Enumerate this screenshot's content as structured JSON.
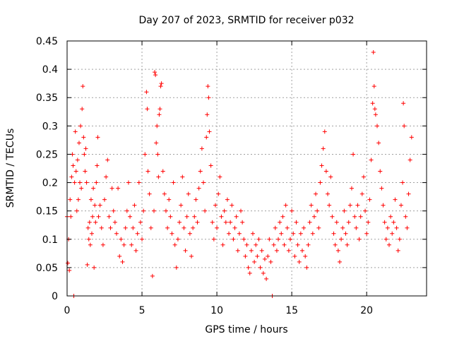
{
  "chart_data": {
    "type": "scatter",
    "title": "Day 207 of 2023, SRMTID for receiver p032",
    "xlabel": "GPS time / hours",
    "ylabel": "SRMTID / TECUs",
    "xlim": [
      0,
      24
    ],
    "ylim": [
      0,
      0.45
    ],
    "xticks": [
      0,
      5,
      10,
      15,
      20
    ],
    "yticks": [
      0,
      0.05,
      0.1,
      0.15,
      0.2,
      0.25,
      0.3,
      0.35,
      0.4,
      0.45
    ],
    "xtick_labels": [
      "0",
      "5",
      "10",
      "15",
      "20"
    ],
    "ytick_labels": [
      "0",
      "0.05",
      "0.1",
      "0.15",
      "0.2",
      "0.25",
      "0.3",
      "0.35",
      "0.4",
      "0.45"
    ],
    "grid": true,
    "marker": "+",
    "color": "#ff0000",
    "series": [
      {
        "name": "SRMTID",
        "points": [
          [
            0.0,
            0.14
          ],
          [
            0.05,
            0.058
          ],
          [
            0.1,
            0.1
          ],
          [
            0.15,
            0.045
          ],
          [
            0.2,
            0.17
          ],
          [
            0.25,
            0.14
          ],
          [
            0.3,
            0.21
          ],
          [
            0.35,
            0.25
          ],
          [
            0.4,
            0.23
          ],
          [
            0.45,
            0.0
          ],
          [
            0.5,
            0.2
          ],
          [
            0.55,
            0.29
          ],
          [
            0.6,
            0.22
          ],
          [
            0.65,
            0.15
          ],
          [
            0.7,
            0.24
          ],
          [
            0.75,
            0.17
          ],
          [
            0.8,
            0.27
          ],
          [
            0.85,
            0.2
          ],
          [
            0.9,
            0.3
          ],
          [
            0.95,
            0.19
          ],
          [
            1.0,
            0.33
          ],
          [
            1.05,
            0.37
          ],
          [
            1.1,
            0.28
          ],
          [
            1.15,
            0.25
          ],
          [
            1.2,
            0.22
          ],
          [
            1.25,
            0.26
          ],
          [
            1.3,
            0.2
          ],
          [
            1.35,
            0.055
          ],
          [
            1.4,
            0.12
          ],
          [
            1.45,
            0.1
          ],
          [
            1.5,
            0.13
          ],
          [
            1.55,
            0.09
          ],
          [
            1.6,
            0.17
          ],
          [
            1.65,
            0.11
          ],
          [
            1.7,
            0.14
          ],
          [
            1.75,
            0.19
          ],
          [
            1.8,
            0.05
          ],
          [
            1.85,
            0.16
          ],
          [
            1.9,
            0.13
          ],
          [
            1.95,
            0.2
          ],
          [
            2.0,
            0.23
          ],
          [
            2.05,
            0.28
          ],
          [
            2.1,
            0.14
          ],
          [
            2.2,
            0.16
          ],
          [
            2.3,
            0.12
          ],
          [
            2.4,
            0.09
          ],
          [
            2.5,
            0.17
          ],
          [
            2.6,
            0.21
          ],
          [
            2.7,
            0.24
          ],
          [
            2.8,
            0.14
          ],
          [
            2.9,
            0.12
          ],
          [
            3.0,
            0.19
          ],
          [
            3.1,
            0.15
          ],
          [
            3.2,
            0.13
          ],
          [
            3.3,
            0.11
          ],
          [
            3.4,
            0.19
          ],
          [
            3.5,
            0.07
          ],
          [
            3.6,
            0.1
          ],
          [
            3.7,
            0.06
          ],
          [
            3.8,
            0.09
          ],
          [
            3.9,
            0.12
          ],
          [
            4.0,
            0.15
          ],
          [
            4.1,
            0.2
          ],
          [
            4.2,
            0.14
          ],
          [
            4.3,
            0.09
          ],
          [
            4.4,
            0.12
          ],
          [
            4.5,
            0.16
          ],
          [
            4.6,
            0.08
          ],
          [
            4.7,
            0.11
          ],
          [
            4.8,
            0.2
          ],
          [
            4.9,
            0.13
          ],
          [
            5.0,
            0.1
          ],
          [
            5.1,
            0.15
          ],
          [
            5.2,
            0.25
          ],
          [
            5.3,
            0.36
          ],
          [
            5.35,
            0.33
          ],
          [
            5.4,
            0.22
          ],
          [
            5.5,
            0.18
          ],
          [
            5.6,
            0.12
          ],
          [
            5.7,
            0.035
          ],
          [
            5.8,
            0.15
          ],
          [
            5.85,
            0.395
          ],
          [
            5.9,
            0.39
          ],
          [
            5.95,
            0.27
          ],
          [
            6.0,
            0.3
          ],
          [
            6.05,
            0.25
          ],
          [
            6.1,
            0.21
          ],
          [
            6.15,
            0.32
          ],
          [
            6.2,
            0.33
          ],
          [
            6.25,
            0.37
          ],
          [
            6.3,
            0.375
          ],
          [
            6.4,
            0.22
          ],
          [
            6.5,
            0.18
          ],
          [
            6.6,
            0.15
          ],
          [
            6.7,
            0.12
          ],
          [
            6.8,
            0.17
          ],
          [
            6.9,
            0.14
          ],
          [
            7.0,
            0.11
          ],
          [
            7.1,
            0.2
          ],
          [
            7.2,
            0.09
          ],
          [
            7.3,
            0.05
          ],
          [
            7.4,
            0.1
          ],
          [
            7.5,
            0.13
          ],
          [
            7.6,
            0.16
          ],
          [
            7.7,
            0.21
          ],
          [
            7.8,
            0.12
          ],
          [
            7.9,
            0.08
          ],
          [
            8.0,
            0.14
          ],
          [
            8.1,
            0.18
          ],
          [
            8.2,
            0.11
          ],
          [
            8.3,
            0.07
          ],
          [
            8.4,
            0.12
          ],
          [
            8.5,
            0.14
          ],
          [
            8.6,
            0.17
          ],
          [
            8.7,
            0.13
          ],
          [
            8.8,
            0.19
          ],
          [
            8.9,
            0.22
          ],
          [
            9.0,
            0.26
          ],
          [
            9.1,
            0.2
          ],
          [
            9.2,
            0.15
          ],
          [
            9.3,
            0.28
          ],
          [
            9.35,
            0.32
          ],
          [
            9.4,
            0.37
          ],
          [
            9.45,
            0.35
          ],
          [
            9.5,
            0.29
          ],
          [
            9.6,
            0.23
          ],
          [
            9.7,
            0.13
          ],
          [
            9.8,
            0.1
          ],
          [
            9.9,
            0.16
          ],
          [
            10.0,
            0.12
          ],
          [
            10.1,
            0.18
          ],
          [
            10.2,
            0.21
          ],
          [
            10.3,
            0.14
          ],
          [
            10.4,
            0.09
          ],
          [
            10.5,
            0.15
          ],
          [
            10.6,
            0.13
          ],
          [
            10.7,
            0.17
          ],
          [
            10.8,
            0.11
          ],
          [
            10.9,
            0.13
          ],
          [
            11.0,
            0.16
          ],
          [
            11.1,
            0.1
          ],
          [
            11.2,
            0.12
          ],
          [
            11.3,
            0.14
          ],
          [
            11.4,
            0.08
          ],
          [
            11.5,
            0.11
          ],
          [
            11.6,
            0.15
          ],
          [
            11.7,
            0.13
          ],
          [
            11.8,
            0.1
          ],
          [
            11.9,
            0.07
          ],
          [
            12.0,
            0.09
          ],
          [
            12.1,
            0.05
          ],
          [
            12.2,
            0.04
          ],
          [
            12.3,
            0.08
          ],
          [
            12.4,
            0.11
          ],
          [
            12.5,
            0.06
          ],
          [
            12.6,
            0.09
          ],
          [
            12.7,
            0.07
          ],
          [
            12.8,
            0.1
          ],
          [
            12.9,
            0.05
          ],
          [
            13.0,
            0.08
          ],
          [
            13.1,
            0.04
          ],
          [
            13.2,
            0.065
          ],
          [
            13.3,
            0.03
          ],
          [
            13.4,
            0.07
          ],
          [
            13.5,
            0.1
          ],
          [
            13.6,
            0.06
          ],
          [
            13.7,
            0.0
          ],
          [
            13.8,
            0.09
          ],
          [
            13.9,
            0.12
          ],
          [
            14.0,
            0.08
          ],
          [
            14.1,
            0.1
          ],
          [
            14.2,
            0.13
          ],
          [
            14.3,
            0.11
          ],
          [
            14.4,
            0.14
          ],
          [
            14.5,
            0.09
          ],
          [
            14.6,
            0.16
          ],
          [
            14.7,
            0.12
          ],
          [
            14.8,
            0.08
          ],
          [
            14.9,
            0.1
          ],
          [
            15.0,
            0.15
          ],
          [
            15.1,
            0.11
          ],
          [
            15.2,
            0.07
          ],
          [
            15.3,
            0.13
          ],
          [
            15.4,
            0.09
          ],
          [
            15.5,
            0.06
          ],
          [
            15.6,
            0.11
          ],
          [
            15.7,
            0.08
          ],
          [
            15.8,
            0.12
          ],
          [
            15.9,
            0.07
          ],
          [
            16.0,
            0.05
          ],
          [
            16.1,
            0.09
          ],
          [
            16.2,
            0.13
          ],
          [
            16.3,
            0.16
          ],
          [
            16.4,
            0.11
          ],
          [
            16.5,
            0.14
          ],
          [
            16.6,
            0.18
          ],
          [
            16.7,
            0.15
          ],
          [
            16.8,
            0.12
          ],
          [
            16.9,
            0.2
          ],
          [
            17.0,
            0.23
          ],
          [
            17.1,
            0.26
          ],
          [
            17.2,
            0.29
          ],
          [
            17.3,
            0.22
          ],
          [
            17.4,
            0.18
          ],
          [
            17.5,
            0.16
          ],
          [
            17.6,
            0.21
          ],
          [
            17.7,
            0.14
          ],
          [
            17.8,
            0.11
          ],
          [
            17.9,
            0.09
          ],
          [
            18.0,
            0.13
          ],
          [
            18.1,
            0.08
          ],
          [
            18.2,
            0.06
          ],
          [
            18.3,
            0.1
          ],
          [
            18.4,
            0.12
          ],
          [
            18.5,
            0.15
          ],
          [
            18.6,
            0.11
          ],
          [
            18.7,
            0.09
          ],
          [
            18.8,
            0.13
          ],
          [
            18.9,
            0.16
          ],
          [
            19.0,
            0.19
          ],
          [
            19.1,
            0.25
          ],
          [
            19.2,
            0.14
          ],
          [
            19.3,
            0.12
          ],
          [
            19.4,
            0.16
          ],
          [
            19.5,
            0.1
          ],
          [
            19.6,
            0.14
          ],
          [
            19.7,
            0.18
          ],
          [
            19.8,
            0.21
          ],
          [
            19.9,
            0.15
          ],
          [
            20.0,
            0.11
          ],
          [
            20.1,
            0.13
          ],
          [
            20.2,
            0.17
          ],
          [
            20.3,
            0.24
          ],
          [
            20.4,
            0.34
          ],
          [
            20.45,
            0.43
          ],
          [
            20.5,
            0.37
          ],
          [
            20.55,
            0.33
          ],
          [
            20.6,
            0.32
          ],
          [
            20.7,
            0.3
          ],
          [
            20.8,
            0.27
          ],
          [
            20.9,
            0.22
          ],
          [
            21.0,
            0.19
          ],
          [
            21.1,
            0.16
          ],
          [
            21.2,
            0.13
          ],
          [
            21.3,
            0.1
          ],
          [
            21.4,
            0.12
          ],
          [
            21.5,
            0.09
          ],
          [
            21.6,
            0.14
          ],
          [
            21.7,
            0.11
          ],
          [
            21.8,
            0.13
          ],
          [
            21.9,
            0.17
          ],
          [
            22.0,
            0.12
          ],
          [
            22.1,
            0.08
          ],
          [
            22.2,
            0.1
          ],
          [
            22.3,
            0.16
          ],
          [
            22.4,
            0.2
          ],
          [
            22.45,
            0.34
          ],
          [
            22.5,
            0.3
          ],
          [
            22.6,
            0.14
          ],
          [
            22.7,
            0.12
          ],
          [
            22.8,
            0.18
          ],
          [
            22.9,
            0.24
          ],
          [
            23.0,
            0.28
          ]
        ]
      }
    ]
  }
}
